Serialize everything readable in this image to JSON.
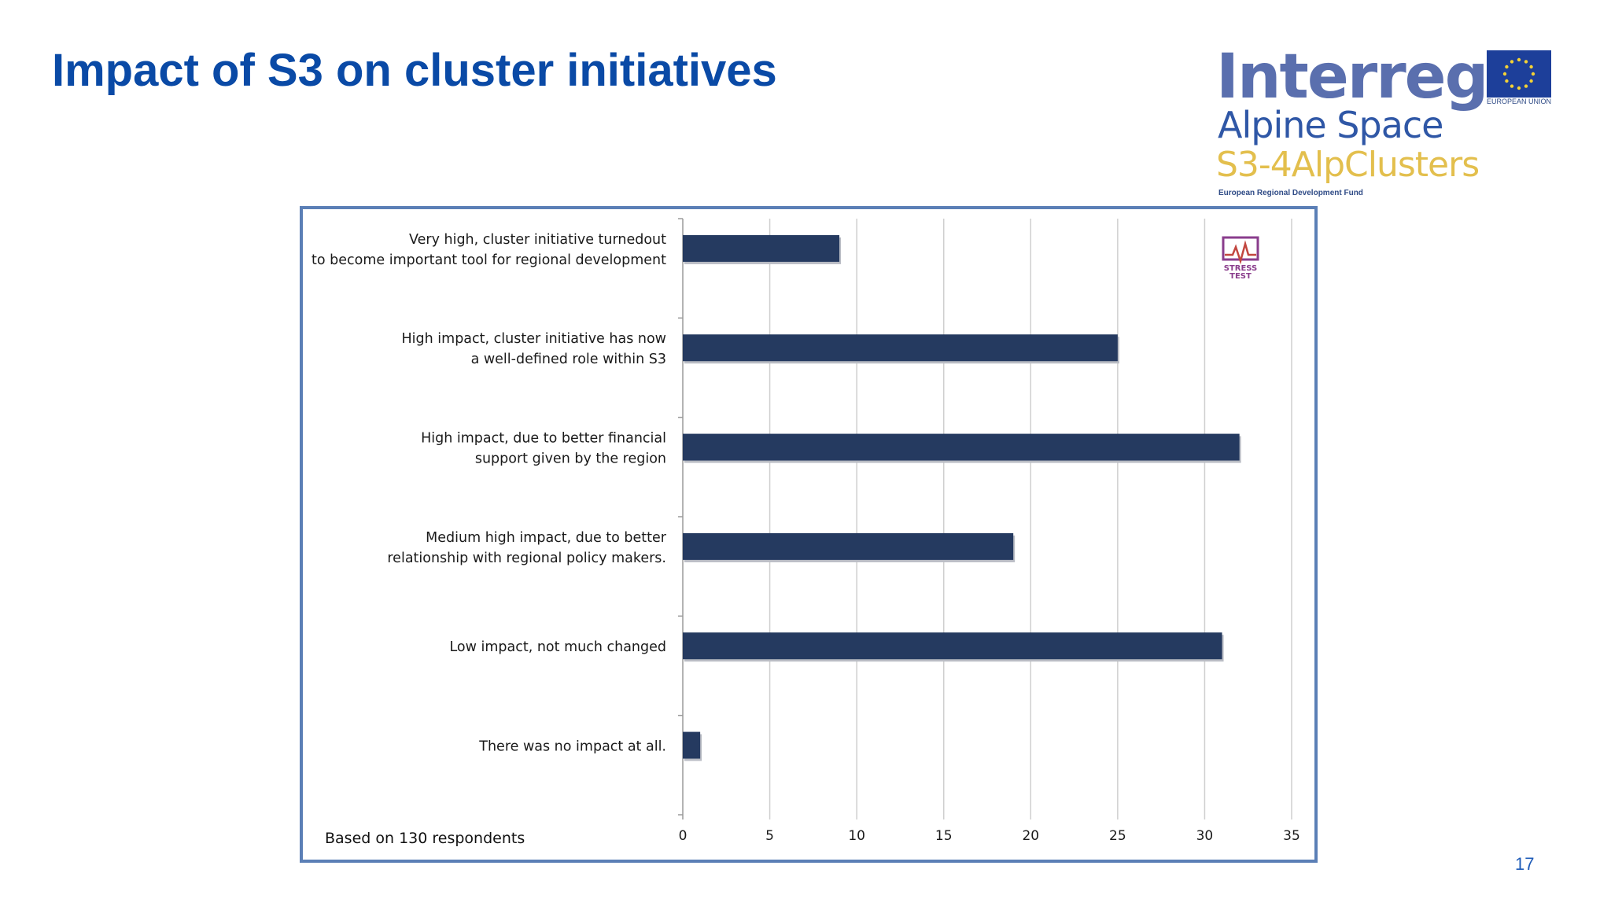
{
  "slide": {
    "title": "Impact of S3 on cluster initiatives",
    "page_number": "17"
  },
  "logo": {
    "interreg": "Interreg",
    "alpine_space": "Alpine Space",
    "project": "S3-4AlpClusters",
    "fund": "European Regional Development Fund",
    "eu_caption": "EUROPEAN UNION",
    "stress_test": "STRESS TEST"
  },
  "colors": {
    "title": "#0a4aa6",
    "bar": "#253a60",
    "frame": "#5b7fb6",
    "interreg": "#5a6fae",
    "alpine_space": "#2f57a6",
    "project": "#e3bf4d"
  },
  "chart_data": {
    "type": "bar",
    "orientation": "horizontal",
    "categories": [
      [
        "Very high, cluster initiative turnedout",
        "to become important tool for regional development"
      ],
      [
        "High impact, cluster initiative has now",
        "a well-defined role within S3"
      ],
      [
        "High impact, due to better financial",
        "support given by the region"
      ],
      [
        "Medium high impact, due to better",
        "relationship with regional policy makers."
      ],
      [
        "Low impact, not much changed"
      ],
      [
        "There was no impact at all."
      ]
    ],
    "values": [
      9,
      25,
      32,
      19,
      31,
      1
    ],
    "xlim": [
      0,
      35
    ],
    "xticks": [
      0,
      5,
      10,
      15,
      20,
      25,
      30,
      35
    ],
    "grid": true,
    "note": "Based on 130 respondents"
  }
}
